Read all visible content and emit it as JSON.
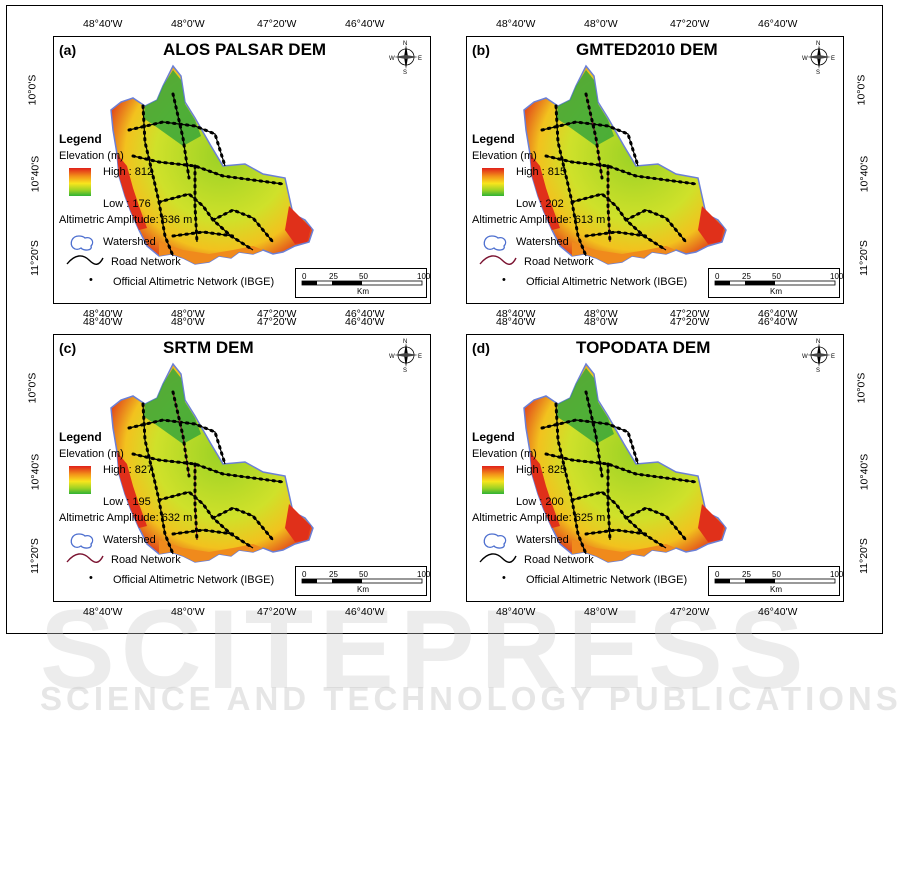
{
  "coords": {
    "lon": [
      "48°40'W",
      "48°0'W",
      "47°20'W",
      "46°40'W"
    ],
    "lat": [
      "10°0'S",
      "10°40'S",
      "11°20'S"
    ]
  },
  "legend": {
    "title": "Legend",
    "elevation": "Elevation (m)",
    "watershed": "Watershed",
    "road": "Road Network",
    "official": "Official Altimetric Network (IBGE)"
  },
  "scalebar": {
    "ticks": [
      "0",
      "25",
      "50",
      "100"
    ],
    "unit": "Km"
  },
  "compass": {
    "n": "N",
    "s": "S",
    "e": "E",
    "w": "W"
  },
  "panels": [
    {
      "letter": "(a)",
      "title": "ALOS PALSAR DEM",
      "high": "High : 812",
      "low": "Low : 176",
      "amplitude": "Altimetric Amplitude: 636 m",
      "road_color": "#000000"
    },
    {
      "letter": "(b)",
      "title": "GMTED2010 DEM",
      "high": "High : 815",
      "low": "Low : 202",
      "amplitude": "Altimetric Amplitude: 613 m",
      "road_color": "#7a1230"
    },
    {
      "letter": "(c)",
      "title": "SRTM DEM",
      "high": "High : 827",
      "low": "Low : 195",
      "amplitude": "Altimetric Amplitude: 632 m",
      "road_color": "#7a1230"
    },
    {
      "letter": "(d)",
      "title": "TOPODATA DEM",
      "high": "High : 825",
      "low": "Low : 200",
      "amplitude": "Altimetric Amplitude: 625 m",
      "road_color": "#000000"
    }
  ],
  "watermark": {
    "line1": "SCITEPRESS",
    "line2": "SCIENCE AND TECHNOLOGY PUBLICATIONS"
  },
  "colors": {
    "high": "#e0201a",
    "mid": "#f8e51d",
    "low": "#2fb236",
    "watershed_outline": "#6b7fd6"
  }
}
